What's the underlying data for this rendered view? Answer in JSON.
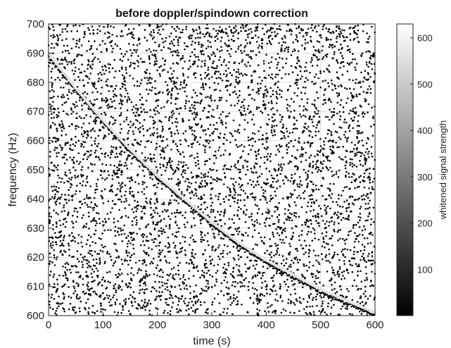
{
  "chart_data": {
    "type": "scatter",
    "title": "before doppler/spindown correction",
    "xlabel": "time (s)",
    "ylabel": "frequency (Hz)",
    "xlim": [
      0,
      600
    ],
    "ylim": [
      600,
      700
    ],
    "xticks": [
      0,
      100,
      200,
      300,
      400,
      500,
      600
    ],
    "yticks": [
      600,
      610,
      620,
      630,
      640,
      650,
      660,
      670,
      680,
      690,
      700
    ],
    "grid": true,
    "colorbar": {
      "label": "whitened signal strength",
      "range": [
        0,
        630
      ],
      "ticks": [
        100,
        200,
        300,
        400,
        500,
        600
      ],
      "colormap": "gray"
    },
    "signal_track": {
      "description_values": "frequency vs time of the bright signal curve",
      "t": [
        0,
        50,
        100,
        150,
        200,
        250,
        300,
        350,
        400,
        450,
        500,
        550,
        600
      ],
      "f": [
        690,
        678,
        667,
        657,
        648,
        640,
        632,
        625,
        619,
        614,
        609,
        605,
        601
      ],
      "strength": 560
    },
    "noise": {
      "count": 5200,
      "strength": 20
    }
  }
}
